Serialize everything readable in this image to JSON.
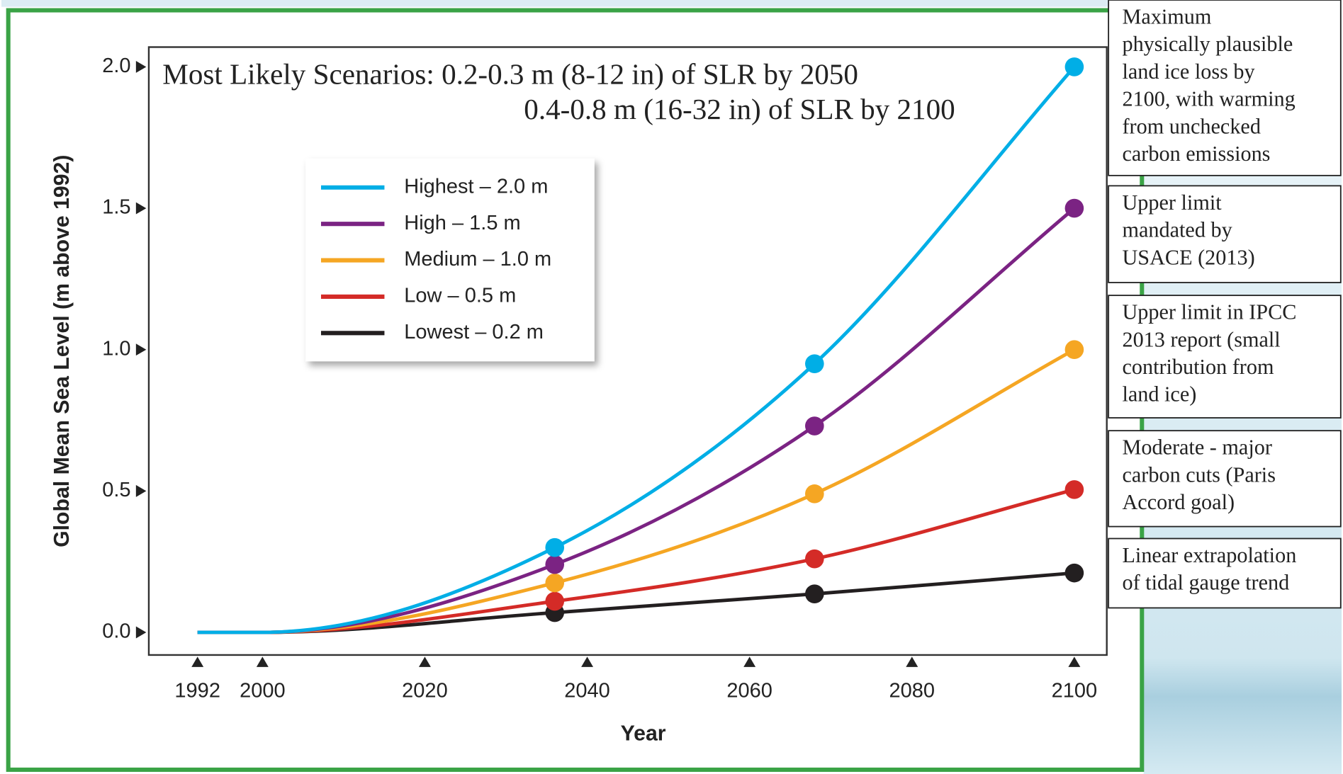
{
  "chart_data": {
    "type": "line",
    "title": [
      "Most Likely Scenarios: 0.2-0.3 m (8-12 in) of SLR by 2050",
      "0.4-0.8 m (16-32 in) of SLR by 2100"
    ],
    "x_label": "Year",
    "y_label": "Global Mean Sea Level (m above 1992)",
    "x": [
      1992,
      2000,
      2036,
      2068,
      2100
    ],
    "series": [
      {
        "name": "Highest – 2.0 m",
        "color": "#00aee6",
        "values": [
          0,
          0,
          0.3,
          0.95,
          2.0
        ]
      },
      {
        "name": "High – 1.5 m",
        "color": "#7b2383",
        "values": [
          0,
          0,
          0.24,
          0.73,
          1.5
        ]
      },
      {
        "name": "Medium – 1.0 m",
        "color": "#f5a623",
        "values": [
          0,
          0,
          0.175,
          0.49,
          1.0
        ]
      },
      {
        "name": "Low – 0.5 m",
        "color": "#d42b27",
        "values": [
          0,
          0,
          0.11,
          0.26,
          0.505
        ]
      },
      {
        "name": "Lowest – 0.2 m",
        "color": "#231f20",
        "values": [
          0,
          0,
          0.07,
          0.136,
          0.21
        ]
      }
    ],
    "xlim": [
      1986,
      2104
    ],
    "ylim": [
      -0.08,
      2.07
    ],
    "xticks": [
      1992,
      2000,
      2020,
      2040,
      2060,
      2080,
      2100
    ],
    "yticks": [
      {
        "value": 0,
        "label": "0.0"
      },
      0.5,
      {
        "value": 1,
        "label": "1.0"
      },
      1.5,
      {
        "value": 2,
        "label": "2.0"
      }
    ],
    "grid": false,
    "legend": "upper left",
    "annotations": [
      [
        "Maximum",
        "physically plausible",
        "land ice loss by",
        "2100, with warming",
        "from unchecked",
        "carbon  emissions"
      ],
      [
        "Upper limit",
        "mandated by",
        "USACE (2013)"
      ],
      [
        "Upper limit in IPCC",
        "2013 report (small",
        "contribution from",
        "land ice)"
      ],
      [
        "Moderate - major",
        "carbon cuts (Paris",
        "Accord goal)"
      ],
      [
        "Linear extrapolation",
        "of tidal gauge trend"
      ]
    ]
  }
}
